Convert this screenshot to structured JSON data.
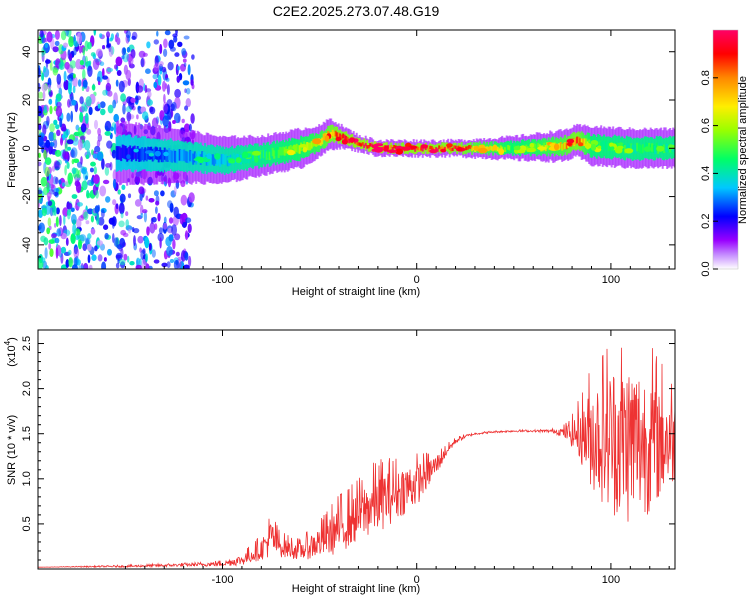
{
  "chart_data": [
    {
      "type": "heatmap",
      "title": "C2E2.2025.273.07.48.G19",
      "xlabel": "Height of straight line (km)",
      "ylabel": "Frequency (Hz)",
      "xlim": [
        -195,
        133
      ],
      "ylim": [
        -50,
        49
      ],
      "x_ticks": [
        -100,
        0,
        100
      ],
      "x_tick_labels": [
        "-100",
        "0",
        "100"
      ],
      "y_ticks": [
        -40,
        -20,
        0,
        20,
        40
      ],
      "y_tick_labels": [
        "-40",
        "-20",
        "0",
        "20",
        "40"
      ],
      "colorbar": {
        "label": "Normalized spectral amplitude",
        "range": [
          0,
          1
        ],
        "ticks": [
          0.0,
          0.2,
          0.4,
          0.6,
          0.8
        ],
        "tick_labels": [
          "0.0",
          "0.2",
          "0.4",
          "0.6",
          "0.8"
        ],
        "colors": [
          "#ffffff",
          "#9900ff",
          "#0000ff",
          "#00c8ff",
          "#00ff66",
          "#99ff00",
          "#ffee00",
          "#ff8800",
          "#ff0000",
          "#ff0066"
        ]
      },
      "ridge": {
        "x": [
          -150,
          -125,
          -100,
          -80,
          -60,
          -50,
          -45,
          -40,
          -30,
          -20,
          -10,
          0,
          20,
          50,
          75,
          82,
          90,
          110,
          133
        ],
        "frequency": [
          -2,
          -3,
          -5,
          -3,
          0,
          3,
          6,
          5,
          2,
          0,
          0,
          0,
          0,
          0,
          1,
          3,
          1,
          0,
          0
        ],
        "amplitude": [
          0.2,
          0.3,
          0.35,
          0.45,
          0.55,
          0.65,
          0.8,
          0.85,
          0.9,
          0.95,
          0.85,
          0.9,
          0.85,
          0.5,
          0.7,
          0.85,
          0.5,
          0.45,
          0.45
        ],
        "spread_hz": [
          8,
          7,
          6,
          5,
          5,
          4,
          4,
          3,
          2,
          2,
          2,
          2,
          2,
          3,
          4,
          4,
          5,
          5,
          5
        ]
      },
      "noise_region_x": [
        -195,
        -115
      ]
    },
    {
      "type": "line",
      "xlabel": "Height of straight line (km)",
      "ylabel": "SNR (10 * v/v)",
      "y_scale_label": "(x10",
      "y_scale_exp": "4",
      "y_scale_close": ")",
      "xlim": [
        -195,
        133
      ],
      "ylim": [
        0.0,
        2.65
      ],
      "x_ticks": [
        -100,
        0,
        100
      ],
      "x_tick_labels": [
        "-100",
        "0",
        "100"
      ],
      "y_ticks": [
        0.5,
        1.0,
        1.5,
        2.0,
        2.5
      ],
      "y_tick_labels": [
        "0.5",
        "1.0",
        "1.5",
        "2.0",
        "2.5"
      ],
      "series": [
        {
          "name": "SNR",
          "color": "#ee3333",
          "x": [
            -195,
            -150,
            -110,
            -100,
            -90,
            -80,
            -75,
            -70,
            -60,
            -50,
            -40,
            -30,
            -20,
            -10,
            0,
            5,
            10,
            15,
            20,
            25,
            30,
            40,
            50,
            60,
            70,
            75,
            80,
            85,
            90,
            100,
            110,
            120,
            133
          ],
          "y": [
            0.02,
            0.03,
            0.05,
            0.06,
            0.1,
            0.22,
            0.35,
            0.25,
            0.2,
            0.3,
            0.45,
            0.6,
            0.75,
            0.85,
            0.95,
            1.05,
            1.15,
            1.3,
            1.42,
            1.47,
            1.5,
            1.52,
            1.53,
            1.53,
            1.53,
            1.52,
            1.5,
            1.5,
            1.48,
            1.45,
            1.42,
            1.42,
            1.45
          ],
          "amplitude": [
            0.0,
            0.01,
            0.02,
            0.03,
            0.06,
            0.12,
            0.22,
            0.12,
            0.1,
            0.18,
            0.28,
            0.3,
            0.35,
            0.3,
            0.25,
            0.18,
            0.12,
            0.06,
            0.03,
            0.02,
            0.01,
            0.01,
            0.01,
            0.01,
            0.02,
            0.05,
            0.15,
            0.35,
            0.6,
            0.85,
            0.95,
            0.8,
            0.5
          ]
        }
      ]
    }
  ]
}
